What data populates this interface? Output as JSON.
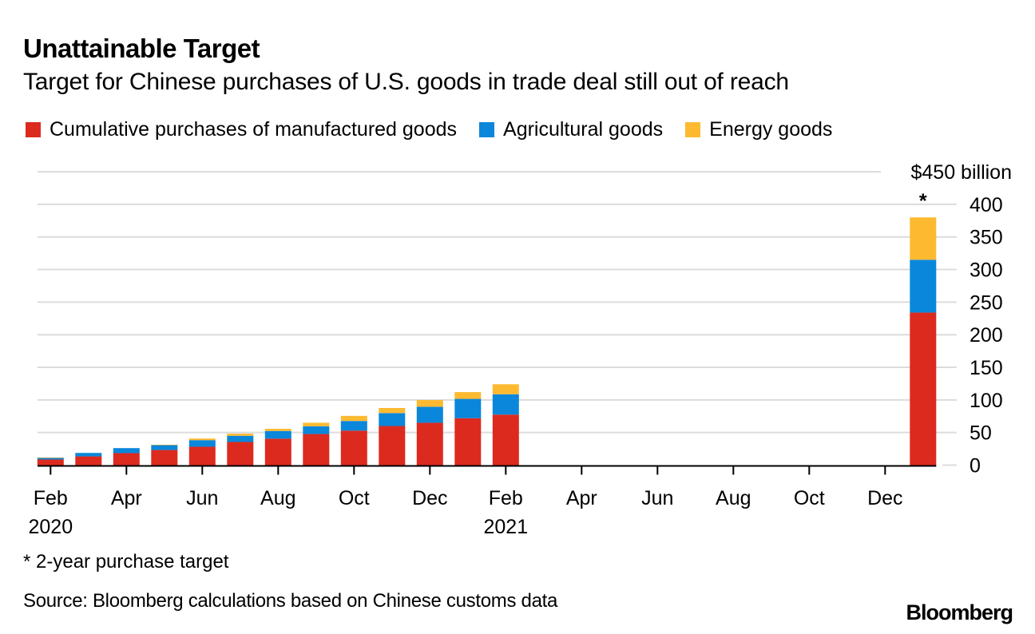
{
  "header": {
    "title": "Unattainable Target",
    "subtitle": "Target for Chinese purchases of U.S. goods in trade deal still out of reach"
  },
  "footer": {
    "note": "* 2-year purchase target",
    "source": "Source: Bloomberg calculations based on Chinese customs data",
    "logo": "Bloomberg"
  },
  "colors": {
    "manufactured": "#DC2A1F",
    "agricultural": "#0A87DB",
    "energy": "#FDBA31",
    "grid": "#DCDCDC",
    "axis": "#000000"
  },
  "chart_data": {
    "type": "bar",
    "stacked": true,
    "title": "Unattainable Target",
    "subtitle": "Target for Chinese purchases of U.S. goods in trade deal still out of reach",
    "xlabel": "",
    "ylabel": "$ billion",
    "y_top_label": "$450 billion",
    "ylim": [
      0,
      450
    ],
    "yticks": [
      0,
      50,
      100,
      150,
      200,
      250,
      300,
      350,
      400
    ],
    "grid": true,
    "legend_position": "top-left",
    "y_axis_position": "right",
    "categories": [
      "Feb 2020",
      "Mar 2020",
      "Apr 2020",
      "May 2020",
      "Jun 2020",
      "Jul 2020",
      "Aug 2020",
      "Sep 2020",
      "Oct 2020",
      "Nov 2020",
      "Dec 2020",
      "Jan 2021",
      "Feb 2021",
      "Mar 2021",
      "Apr 2021",
      "May 2021",
      "Jun 2021",
      "Jul 2021",
      "Aug 2021",
      "Sep 2021",
      "Oct 2021",
      "Nov 2021",
      "Dec 2021",
      "2-year target *"
    ],
    "xtick_labels": [
      {
        "index": 0,
        "label": "Feb",
        "sublabel": "2020"
      },
      {
        "index": 2,
        "label": "Apr",
        "sublabel": ""
      },
      {
        "index": 4,
        "label": "Jun",
        "sublabel": ""
      },
      {
        "index": 6,
        "label": "Aug",
        "sublabel": ""
      },
      {
        "index": 8,
        "label": "Oct",
        "sublabel": ""
      },
      {
        "index": 10,
        "label": "Dec",
        "sublabel": ""
      },
      {
        "index": 12,
        "label": "Feb",
        "sublabel": "2021"
      },
      {
        "index": 14,
        "label": "Apr",
        "sublabel": ""
      },
      {
        "index": 16,
        "label": "Jun",
        "sublabel": ""
      },
      {
        "index": 18,
        "label": "Aug",
        "sublabel": ""
      },
      {
        "index": 20,
        "label": "Oct",
        "sublabel": ""
      },
      {
        "index": 22,
        "label": "Dec",
        "sublabel": ""
      }
    ],
    "series": [
      {
        "name": "Cumulative purchases of manufactured goods",
        "key": "manufactured",
        "values": [
          8.6,
          13.4,
          18.4,
          23.2,
          28.2,
          35.5,
          40.6,
          47.7,
          52.9,
          60.0,
          65.0,
          72.0,
          77.5,
          null,
          null,
          null,
          null,
          null,
          null,
          null,
          null,
          null,
          null,
          234
        ]
      },
      {
        "name": "Agricultural goods",
        "key": "agricultural",
        "values": [
          2.8,
          5.3,
          7.7,
          7.8,
          10.1,
          9.5,
          11.8,
          11.9,
          14.8,
          19.8,
          24.5,
          29.6,
          31.2,
          null,
          null,
          null,
          null,
          null,
          null,
          null,
          null,
          null,
          null,
          81
        ]
      },
      {
        "name": "Energy goods",
        "key": "energy",
        "values": [
          0.3,
          0.0,
          0.0,
          0.3,
          2.5,
          3.3,
          3.3,
          5.4,
          7.8,
          7.8,
          10.3,
          10.4,
          15.3,
          null,
          null,
          null,
          null,
          null,
          null,
          null,
          null,
          null,
          null,
          65
        ]
      }
    ],
    "annotations": [
      {
        "index": 23,
        "text": "*"
      }
    ]
  }
}
